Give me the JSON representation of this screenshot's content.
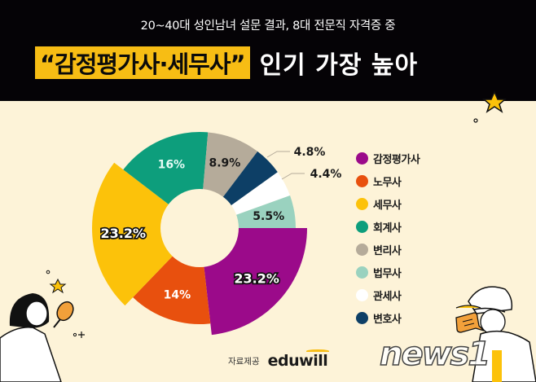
{
  "header": {
    "subtitle": "20~40대 성인남녀 설문 결과, 8대 전문직 자격증 중",
    "title_highlight": "“감정평가사·세무사”",
    "title_rest": "인기 가장 높아"
  },
  "chart_data": {
    "type": "pie",
    "title": "“감정평가사·세무사” 인기 가장 높아",
    "subtitle": "20~40대 성인남녀 설문 결과, 8대 전문직 자격증 중",
    "donut": true,
    "start": "3 o'clock, clockwise",
    "categories": [
      "감정평가사",
      "노무사",
      "세무사",
      "회계사",
      "변리사",
      "법무사",
      "관세사",
      "변호사"
    ],
    "values": [
      23.2,
      14,
      23.2,
      16,
      8.9,
      5.5,
      4.4,
      4.8
    ],
    "slices_in_drawing_order": [
      {
        "name": "감정평가사",
        "value": 23.2,
        "label": "23.2%",
        "color": "#9b0a8a",
        "emphasized": true
      },
      {
        "name": "노무사",
        "value": 14,
        "label": "14%",
        "color": "#e8500e",
        "emphasized": false
      },
      {
        "name": "세무사",
        "value": 23.2,
        "label": "23.2%",
        "color": "#fcc20a",
        "emphasized": true
      },
      {
        "name": "회계사",
        "value": 16,
        "label": "16%",
        "color": "#0d9e7c",
        "emphasized": false
      },
      {
        "name": "변리사",
        "value": 8.9,
        "label": "8.9%",
        "color": "#b5ab9a",
        "emphasized": false
      },
      {
        "name": "변호사",
        "value": 4.8,
        "label": "4.8%",
        "color": "#0d3f66",
        "emphasized": false
      },
      {
        "name": "관세사",
        "value": 4.4,
        "label": "4.4%",
        "color": "#ffffff",
        "emphasized": false
      },
      {
        "name": "법무사",
        "value": 5.5,
        "label": "5.5%",
        "color": "#9ad2bf",
        "emphasized": false
      }
    ],
    "legend_position": "right"
  },
  "legend": {
    "items": [
      {
        "label": "감정평가사",
        "color": "#9b0a8a"
      },
      {
        "label": "노무사",
        "color": "#e8500e"
      },
      {
        "label": "세무사",
        "color": "#fcc20a"
      },
      {
        "label": "회계사",
        "color": "#0d9e7c"
      },
      {
        "label": "변리사",
        "color": "#b5ab9a"
      },
      {
        "label": "법무사",
        "color": "#9ad2bf"
      },
      {
        "label": "관세사",
        "color": "#ffffff"
      },
      {
        "label": "변호사",
        "color": "#0d3f66"
      }
    ]
  },
  "footer": {
    "source_label": "자료제공",
    "brand": "eduwill",
    "watermark": "news1"
  },
  "icons": [
    "star-icon",
    "sparkle-icon",
    "woman-magnifier-illustration",
    "man-cap-illustration",
    "speech-bubble-icon"
  ]
}
